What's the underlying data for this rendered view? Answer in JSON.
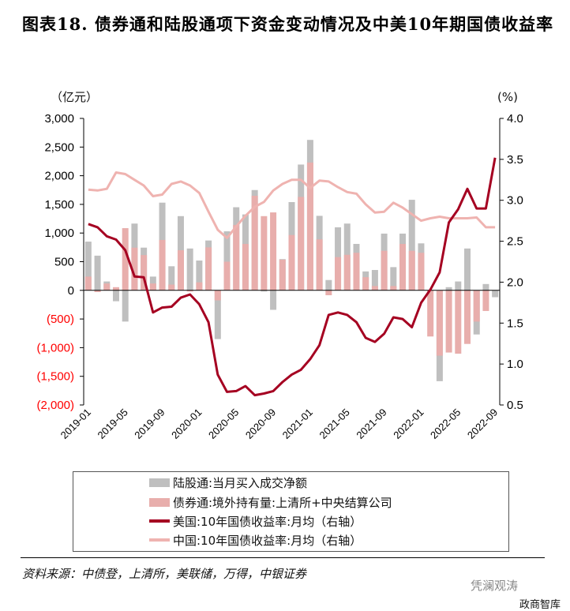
{
  "title": "图表18. 债券通和陆股通项下资金变动情况及中美10年期国债收益率",
  "source": "资料来源：中债登，上清所，美联储，万得，中银证券",
  "watermark": {
    "line1": "凭澜观涛",
    "line2": "政商智库"
  },
  "chart_data": {
    "type": "bar+line",
    "left_axis": {
      "unit": "（亿元）",
      "ylim": [
        -2000,
        3000
      ],
      "ticks": [
        3000,
        2500,
        2000,
        1500,
        1000,
        500,
        0,
        -500,
        -1000,
        -1500,
        -2000
      ],
      "tick_labels": [
        "3,000",
        "2,500",
        "2,000",
        "1,500",
        "1,000",
        "500",
        "0",
        "(500)",
        "(1,000)",
        "(1,500)",
        "(2,000)"
      ]
    },
    "right_axis": {
      "unit": "(%)",
      "ylim": [
        0.5,
        4.0
      ],
      "ticks": [
        4.0,
        3.5,
        3.0,
        2.5,
        2.0,
        1.5,
        1.0,
        0.5
      ],
      "tick_labels": [
        "4.0",
        "3.5",
        "3.0",
        "2.5",
        "2.0",
        "1.5",
        "1.0",
        "0.5"
      ]
    },
    "x_tick_labels": [
      "2019-01",
      "2019-05",
      "2019-09",
      "2020-01",
      "2020-05",
      "2020-09",
      "2021-01",
      "2021-05",
      "2021-09",
      "2022-01",
      "2022-05",
      "2022-09"
    ],
    "x_start": "2019-01",
    "x_end": "2022-09",
    "grid": false,
    "legend_placement": "bottom",
    "colors": {
      "stock_connect": "#bfbfbf",
      "bond_connect": "#e8aeac",
      "us10y": "#a50021",
      "cn10y": "#efb3b0",
      "negative_label": "#ff0000"
    },
    "series": [
      {
        "name": "陆股通:当月买入成交净额",
        "type": "bar",
        "axis": "left",
        "values": [
          850,
          605,
          155,
          -190,
          -545,
          1165,
          745,
          240,
          1530,
          420,
          1295,
          730,
          520,
          870,
          -850,
          1030,
          1450,
          1325,
          1750,
          -20,
          -340,
          545,
          1540,
          2195,
          2625,
          1300,
          180,
          1100,
          1165,
          810,
          330,
          355,
          990,
          405,
          990,
          1580,
          820,
          0,
          -1585,
          55,
          155,
          730,
          -770,
          110,
          -120
        ]
      },
      {
        "name": "债券通:境外持有量:上清所+中央结算公司",
        "type": "bar",
        "axis": "left",
        "values": [
          240,
          -30,
          120,
          55,
          1085,
          745,
          615,
          120,
          880,
          100,
          700,
          -20,
          140,
          750,
          -175,
          500,
          1140,
          810,
          1650,
          1295,
          1360,
          535,
          965,
          1630,
          2230,
          890,
          -85,
          580,
          620,
          655,
          230,
          75,
          690,
          75,
          810,
          690,
          655,
          -805,
          -1140,
          -1085,
          -1105,
          -935,
          -545,
          -360,
          0
        ]
      },
      {
        "name": "美国:10年国债收益率:月均（右轴）",
        "type": "line",
        "axis": "right",
        "values": [
          2.71,
          2.67,
          2.56,
          2.52,
          2.39,
          2.07,
          2.06,
          1.63,
          1.69,
          1.7,
          1.81,
          1.85,
          1.73,
          1.51,
          0.87,
          0.66,
          0.67,
          0.73,
          0.62,
          0.64,
          0.67,
          0.78,
          0.87,
          0.93,
          1.06,
          1.23,
          1.6,
          1.63,
          1.6,
          1.51,
          1.32,
          1.27,
          1.37,
          1.57,
          1.55,
          1.45,
          1.75,
          1.91,
          2.12,
          2.73,
          2.89,
          3.14,
          2.9,
          2.9,
          3.52
        ]
      },
      {
        "name": "中国:10年国债收益率:月均（右轴）",
        "type": "line",
        "axis": "right",
        "values": [
          3.13,
          3.12,
          3.14,
          3.34,
          3.32,
          3.25,
          3.18,
          3.05,
          3.07,
          3.2,
          3.23,
          3.18,
          3.09,
          2.86,
          2.64,
          2.54,
          2.68,
          2.81,
          2.92,
          2.98,
          3.12,
          3.2,
          3.25,
          3.25,
          3.15,
          3.24,
          3.23,
          3.16,
          3.1,
          3.08,
          2.95,
          2.85,
          2.86,
          2.97,
          2.91,
          2.83,
          2.75,
          2.78,
          2.8,
          2.78,
          2.78,
          2.78,
          2.79,
          2.67,
          2.67
        ]
      }
    ]
  }
}
